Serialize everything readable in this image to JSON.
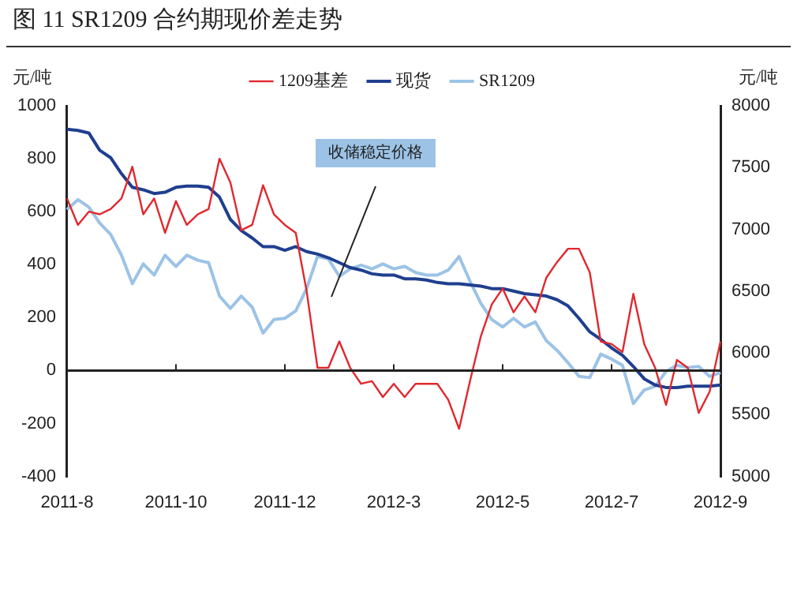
{
  "chart_data": {
    "type": "line",
    "title": "图 11 SR1209 合约期现价差走势",
    "ylabel": "元/吨",
    "y2label": "元/吨",
    "annotations": [
      "收储稳定价格"
    ],
    "categories": [
      "2011-8",
      null,
      null,
      null,
      null,
      null,
      null,
      null,
      null,
      null,
      "2011-10",
      null,
      null,
      null,
      null,
      null,
      null,
      null,
      null,
      null,
      "2011-12",
      null,
      null,
      null,
      null,
      null,
      null,
      null,
      null,
      null,
      "2012-3",
      null,
      null,
      null,
      null,
      null,
      null,
      null,
      null,
      null,
      "2012-5",
      null,
      null,
      null,
      null,
      null,
      null,
      null,
      null,
      null,
      "2012-7",
      null,
      null,
      null,
      null,
      null,
      null,
      null,
      null,
      null,
      "2012-9"
    ],
    "series": [
      {
        "name": "1209基差",
        "color": "#e0282e",
        "values": [
          650,
          550,
          600,
          590,
          610,
          650,
          770,
          590,
          650,
          520,
          640,
          550,
          590,
          610,
          800,
          710,
          530,
          550,
          700,
          590,
          550,
          520,
          300,
          10,
          10,
          110,
          10,
          -50,
          -40,
          -100,
          -50,
          -100,
          -50,
          -50,
          -50,
          -110,
          -220,
          -40,
          130,
          250,
          310,
          220,
          280,
          220,
          350,
          410,
          460,
          460,
          370,
          110,
          100,
          70,
          290,
          100,
          10,
          -130,
          40,
          10,
          -160,
          -80,
          110
        ]
      },
      {
        "name": "现货",
        "color": "#1f3f8f",
        "axis": "y2",
        "values": [
          7810,
          7800,
          7780,
          7640,
          7580,
          7450,
          7340,
          7320,
          7290,
          7300,
          7340,
          7350,
          7350,
          7340,
          7260,
          7080,
          6990,
          6930,
          6860,
          6860,
          6830,
          6860,
          6820,
          6800,
          6770,
          6730,
          6690,
          6670,
          6640,
          6630,
          6630,
          6600,
          6600,
          6590,
          6570,
          6560,
          6560,
          6550,
          6540,
          6520,
          6520,
          6500,
          6480,
          6470,
          6460,
          6430,
          6380,
          6280,
          6170,
          6110,
          6040,
          5980,
          5890,
          5790,
          5740,
          5720,
          5720,
          5730,
          5730,
          5730,
          5740
        ]
      },
      {
        "name": "SR1209",
        "color": "#9cc3e6",
        "axis": "y2",
        "values": [
          7160,
          7240,
          7180,
          7050,
          6960,
          6790,
          6560,
          6720,
          6630,
          6790,
          6700,
          6790,
          6750,
          6730,
          6460,
          6360,
          6460,
          6370,
          6160,
          6270,
          6280,
          6340,
          6520,
          6780,
          6760,
          6620,
          6680,
          6710,
          6680,
          6720,
          6680,
          6700,
          6650,
          6630,
          6630,
          6670,
          6780,
          6580,
          6400,
          6270,
          6210,
          6280,
          6210,
          6250,
          6100,
          6020,
          5920,
          5810,
          5800,
          5990,
          5950,
          5900,
          5590,
          5700,
          5730,
          5850,
          5900,
          5880,
          5890,
          5810,
          5840
        ]
      }
    ],
    "ylim": [
      -400,
      1000
    ],
    "yticks": [
      -400,
      -200,
      0,
      200,
      400,
      600,
      800,
      1000
    ],
    "y2lim": [
      5000,
      8000
    ],
    "y2ticks": [
      5000,
      5500,
      6000,
      6500,
      7000,
      7500,
      8000
    ],
    "ref_lines": [
      {
        "axis": "y",
        "value": 0
      }
    ],
    "grid": false,
    "legend": "top",
    "marker": "none",
    "line_style": "solid"
  }
}
